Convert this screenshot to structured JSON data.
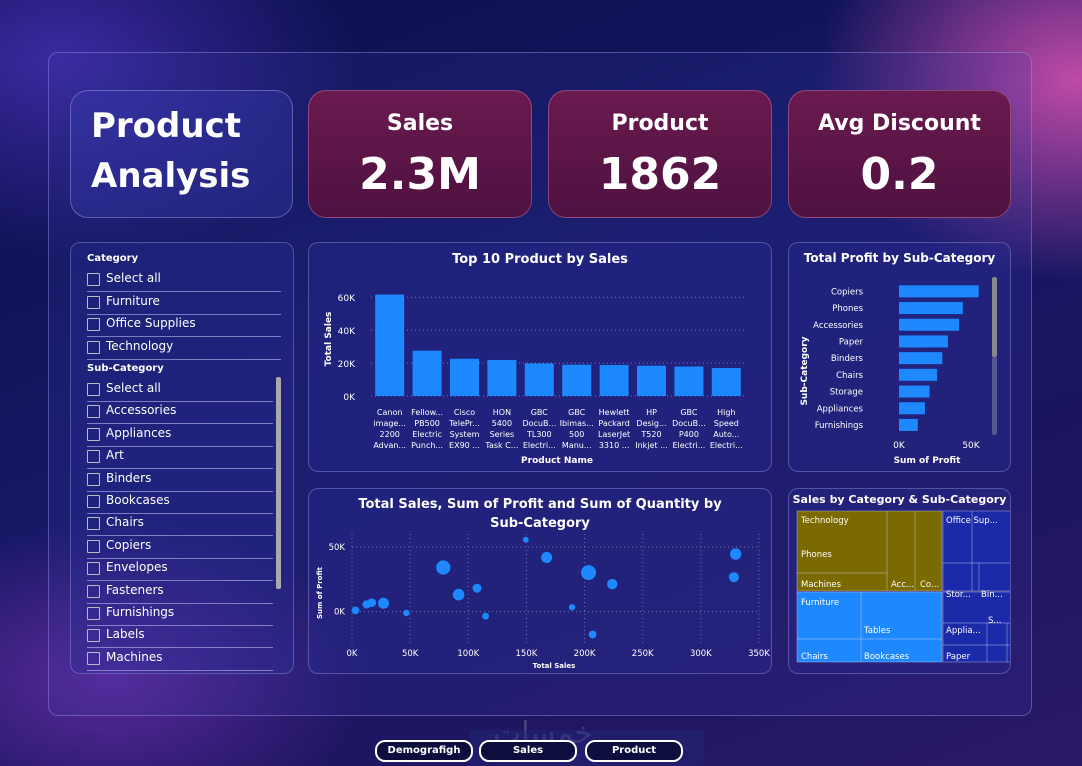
{
  "title": {
    "line1": "Product",
    "line2": "Analysis"
  },
  "kpis": [
    {
      "label": "Sales",
      "value": "2.3M"
    },
    {
      "label": "Product",
      "value": "1862"
    },
    {
      "label": "Avg Discount",
      "value": "0.2"
    }
  ],
  "slicer": {
    "category_header": "Category",
    "category_items": [
      "Select all",
      "Furniture",
      "Office Supplies",
      "Technology"
    ],
    "subcategory_header": "Sub-Category",
    "subcategory_items": [
      "Select all",
      "Accessories",
      "Appliances",
      "Art",
      "Binders",
      "Bookcases",
      "Chairs",
      "Copiers",
      "Envelopes",
      "Fasteners",
      "Furnishings",
      "Labels",
      "Machines"
    ]
  },
  "nav": {
    "demografigh": "Demografigh",
    "sales": "Sales",
    "product": "Product"
  },
  "watermark": "خمسات",
  "colors": {
    "bar": "#1e88ff",
    "kpi": "#5a1545",
    "tech": "#7a6a00",
    "furniture": "#1e88ff",
    "office": "#1a2aa8"
  },
  "chart_data": [
    {
      "type": "bar",
      "title": "Top 10 Product by Sales",
      "xlabel": "Product Name",
      "ylabel": "Total Sales",
      "ylim": [
        0,
        65000
      ],
      "yticks": [
        "0K",
        "20K",
        "40K",
        "60K"
      ],
      "categories": [
        [
          "Canon",
          "image...",
          "2200",
          "Advan..."
        ],
        [
          "Fellow...",
          "PB500",
          "Electric",
          "Punch..."
        ],
        [
          "Cisco",
          "TelePr...",
          "System",
          "EX90 ..."
        ],
        [
          "HON",
          "5400",
          "Series",
          "Task C..."
        ],
        [
          "GBC",
          "DocuB...",
          "TL300",
          "Electri..."
        ],
        [
          "GBC",
          "Ibimas...",
          "500",
          "Manu..."
        ],
        [
          "Hewlett",
          "Packard",
          "LaserJet",
          "3310 ..."
        ],
        [
          "HP",
          "Desig...",
          "T520",
          "Inkjet ..."
        ],
        [
          "GBC",
          "DocuB...",
          "P400",
          "Electri..."
        ],
        [
          "High",
          "Speed",
          "Auto...",
          "Electri..."
        ]
      ],
      "values": [
        61600,
        27500,
        22600,
        21900,
        19800,
        19000,
        18800,
        18400,
        17900,
        17000
      ]
    },
    {
      "type": "bar",
      "orientation": "horizontal",
      "title": "Total Profit by Sub-Category",
      "xlabel": "Sum of Profit",
      "ylabel": "Sub-Category",
      "xlim": [
        0,
        60000
      ],
      "xticks": [
        "0K",
        "50K"
      ],
      "categories": [
        "Copiers",
        "Phones",
        "Accessories",
        "Paper",
        "Binders",
        "Chairs",
        "Storage",
        "Appliances",
        "Furnishings"
      ],
      "values": [
        55600,
        44500,
        41900,
        34100,
        30200,
        26600,
        21300,
        18100,
        13100
      ]
    },
    {
      "type": "scatter",
      "title": "Total Sales, Sum of Profit and Sum of Quantity by Sub-Category",
      "xlabel": "Total Sales",
      "ylabel": "Sum of Profit",
      "xlim": [
        0,
        350000
      ],
      "ylim": [
        -25000,
        60000
      ],
      "xticks": [
        "0K",
        "50K",
        "100K",
        "150K",
        "200K",
        "250K",
        "300K",
        "350K"
      ],
      "yticks": [
        "0K",
        "50K"
      ],
      "points": [
        {
          "x": 3000,
          "y": 1000,
          "size": 900
        },
        {
          "x": 12500,
          "y": 5500,
          "size": 1000
        },
        {
          "x": 17000,
          "y": 6900,
          "size": 1100
        },
        {
          "x": 27100,
          "y": 6500,
          "size": 1800
        },
        {
          "x": 46700,
          "y": -1000,
          "size": 600
        },
        {
          "x": 78500,
          "y": 34100,
          "size": 3000
        },
        {
          "x": 91700,
          "y": 13100,
          "size": 2000
        },
        {
          "x": 107500,
          "y": 18100,
          "size": 1200
        },
        {
          "x": 114900,
          "y": -3500,
          "size": 700
        },
        {
          "x": 149500,
          "y": 55600,
          "size": 500
        },
        {
          "x": 167400,
          "y": 41900,
          "size": 1800
        },
        {
          "x": 189200,
          "y": 3400,
          "size": 600
        },
        {
          "x": 203400,
          "y": 30200,
          "size": 3300
        },
        {
          "x": 206900,
          "y": -17700,
          "size": 900
        },
        {
          "x": 223800,
          "y": 21300,
          "size": 1600
        },
        {
          "x": 328400,
          "y": 26600,
          "size": 1500
        },
        {
          "x": 330000,
          "y": 44500,
          "size": 1900
        }
      ]
    },
    {
      "type": "treemap",
      "title": "Sales by Category & Sub-Category",
      "labels": [
        "Technology",
        "Phones",
        "Machines",
        "Acc...",
        "Co...",
        "Office Sup...",
        "Stor...",
        "Bin...",
        "Furniture",
        "Tables",
        "Chairs",
        "Bookcases",
        "Applia...",
        "Paper",
        "S..."
      ]
    }
  ]
}
